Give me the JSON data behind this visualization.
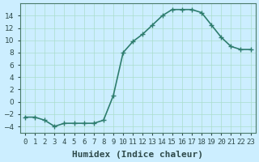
{
  "x": [
    0,
    1,
    2,
    3,
    4,
    5,
    6,
    7,
    8,
    9,
    10,
    11,
    12,
    13,
    14,
    15,
    16,
    17,
    18,
    19,
    20,
    21,
    22,
    23
  ],
  "y": [
    -2.5,
    -2.5,
    -3.0,
    -4.0,
    -3.5,
    -3.5,
    -3.5,
    -3.5,
    -3.0,
    1.0,
    8.0,
    9.8,
    11.0,
    12.5,
    14.0,
    15.0,
    15.0,
    15.0,
    14.5,
    12.5,
    10.5,
    9.0,
    8.5,
    8.5
  ],
  "line_color": "#2e7d6e",
  "marker": "+",
  "marker_size": 4,
  "bg_color": "#cceeff",
  "grid_color": "#aaddcc",
  "xlabel": "Humidex (Indice chaleur)",
  "xlim": [
    -0.5,
    23.5
  ],
  "ylim": [
    -5,
    16
  ],
  "yticks": [
    -4,
    -2,
    0,
    2,
    4,
    6,
    8,
    10,
    12,
    14
  ],
  "xtick_labels": [
    "0",
    "1",
    "2",
    "3",
    "4",
    "5",
    "6",
    "7",
    "8",
    "9",
    "10",
    "11",
    "12",
    "13",
    "14",
    "15",
    "16",
    "17",
    "18",
    "19",
    "20",
    "21",
    "22",
    "23"
  ],
  "xlabel_fontsize": 8,
  "tick_fontsize": 6.5,
  "tick_color": "#2e4a4a",
  "spine_color": "#4a7a6a",
  "line_width": 1.2
}
